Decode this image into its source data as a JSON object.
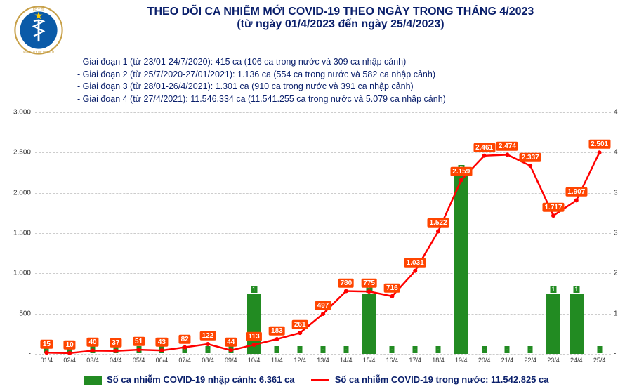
{
  "title": {
    "line1": "THEO DÕI CA NHIỄM MỚI COVID-19 THEO NGÀY TRONG THÁNG 4/2023",
    "line2": "(từ ngày 01/4/2023 đến ngày 25/4/2023)",
    "color": "#0a1f6b",
    "fontsize": 16
  },
  "notes": [
    "- Giai đoạn 1 (từ 23/01-24/7/2020): 415 ca (106 ca trong nước và 309 ca nhập cảnh)",
    "- Giai đoạn 2 (từ 25/7/2020-27/01/2021): 1.136 ca (554 ca trong nước và 582 ca nhập cảnh)",
    "- Giai đoạn 3 (từ 28/01-26/4/2021): 1.301 ca (910 ca trong nước và 391 ca nhập cảnh)",
    "- Giai đoạn 4 (từ 27/4/2021): 11.546.334 ca (11.541.255 ca trong nước và 5.079 ca nhập cảnh)"
  ],
  "chart": {
    "type": "combo-bar-line",
    "categories": [
      "01/4",
      "02/4",
      "03/4",
      "04/4",
      "05/4",
      "06/4",
      "07/4",
      "08/4",
      "09/4",
      "10/4",
      "11/4",
      "12/4",
      "13/4",
      "14/4",
      "15/4",
      "16/4",
      "17/4",
      "18/4",
      "19/4",
      "20/4",
      "21/4",
      "22/4",
      "23/4",
      "24/4",
      "25/4"
    ],
    "bar_values": [
      0,
      0,
      0,
      0,
      0,
      0,
      0,
      0,
      0,
      1,
      0,
      0,
      0,
      0,
      1,
      0,
      0,
      0,
      3,
      0,
      0,
      0,
      1,
      1,
      0
    ],
    "bar_labels": [
      "-",
      "-",
      "-",
      "-",
      "-",
      "-",
      "-",
      "-",
      "-",
      "1",
      "-",
      "-",
      "-",
      "-",
      "1",
      "-",
      "-",
      "-",
      "3",
      "-",
      "-",
      "-",
      "1",
      "1",
      "-"
    ],
    "bar_color": "#228b22",
    "bar_label_bg": "#228b22",
    "line_values": [
      15,
      10,
      40,
      37,
      51,
      43,
      82,
      122,
      44,
      113,
      183,
      261,
      497,
      780,
      775,
      716,
      1031,
      1522,
      2159,
      2461,
      2474,
      2337,
      1717,
      1907,
      2501
    ],
    "line_labels": [
      "15",
      "10",
      "40",
      "37",
      "51",
      "43",
      "82",
      "122",
      "44",
      "113",
      "183",
      "261",
      "497",
      "780",
      "775",
      "716",
      "1.031",
      "1.522",
      "2.159",
      "2.461",
      "2.474",
      "2.337",
      "1.717",
      "1.907",
      "2.501"
    ],
    "line_color": "#ff0000",
    "marker_color": "#ff4500",
    "y_left_max": 3000,
    "y_left_ticks": [
      0,
      500,
      1000,
      1500,
      2000,
      2500,
      3000
    ],
    "y_left_tick_labels": [
      "-",
      "500",
      "1.000",
      "1.500",
      "2.000",
      "2.500",
      "3.000"
    ],
    "y_right_max": 4,
    "y_right_ticks": [
      0,
      1,
      2,
      3,
      3,
      4,
      4
    ],
    "y_right_tick_labels": [
      "-",
      "1",
      "2",
      "3",
      "3",
      "4",
      "4"
    ],
    "grid_color": "#cccccc",
    "background_color": "#ffffff"
  },
  "legend": {
    "bar_text": "Số ca nhiễm COVID-19 nhập cảnh: 6.361 ca",
    "line_text": "Số ca nhiễm COVID-19 trong nước: 11.542.825 ca",
    "bar_color": "#228b22",
    "line_color": "#ff0000"
  },
  "logo": {
    "outer_color": "#c8a14a",
    "inner_color": "#0a5aa8",
    "star_color": "#ffcc00",
    "snake_color": "#ffffff"
  }
}
